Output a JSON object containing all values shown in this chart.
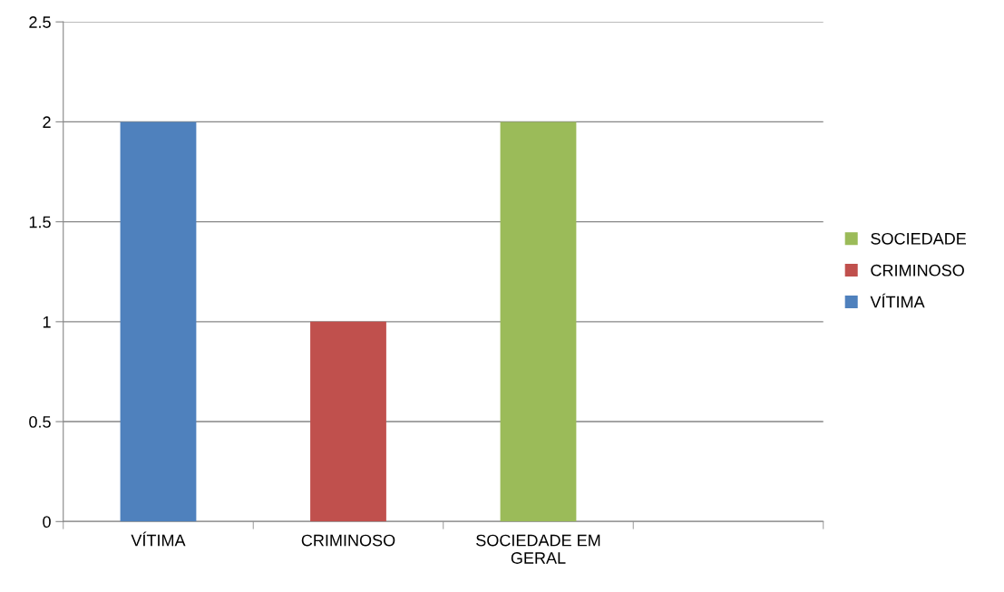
{
  "chart_data": {
    "type": "bar",
    "stacked": true,
    "categories": [
      "VÍTIMA",
      "CRIMINOSO",
      "SOCIEDADE EM\nGERAL",
      null
    ],
    "series": [
      {
        "name": "VÍTIMA",
        "color": "#4f81bd",
        "values": [
          2,
          null,
          null,
          null
        ]
      },
      {
        "name": "CRIMINOSO",
        "color": "#c0504d",
        "values": [
          null,
          1,
          null,
          null
        ]
      },
      {
        "name": "SOCIEDADE",
        "color": "#9bbb59",
        "values": [
          null,
          null,
          2,
          null
        ]
      }
    ],
    "ylim": [
      0,
      2.5
    ],
    "yticks": [
      0,
      0.5,
      1,
      1.5,
      2,
      2.5
    ],
    "grid": "y",
    "legend": "right"
  }
}
